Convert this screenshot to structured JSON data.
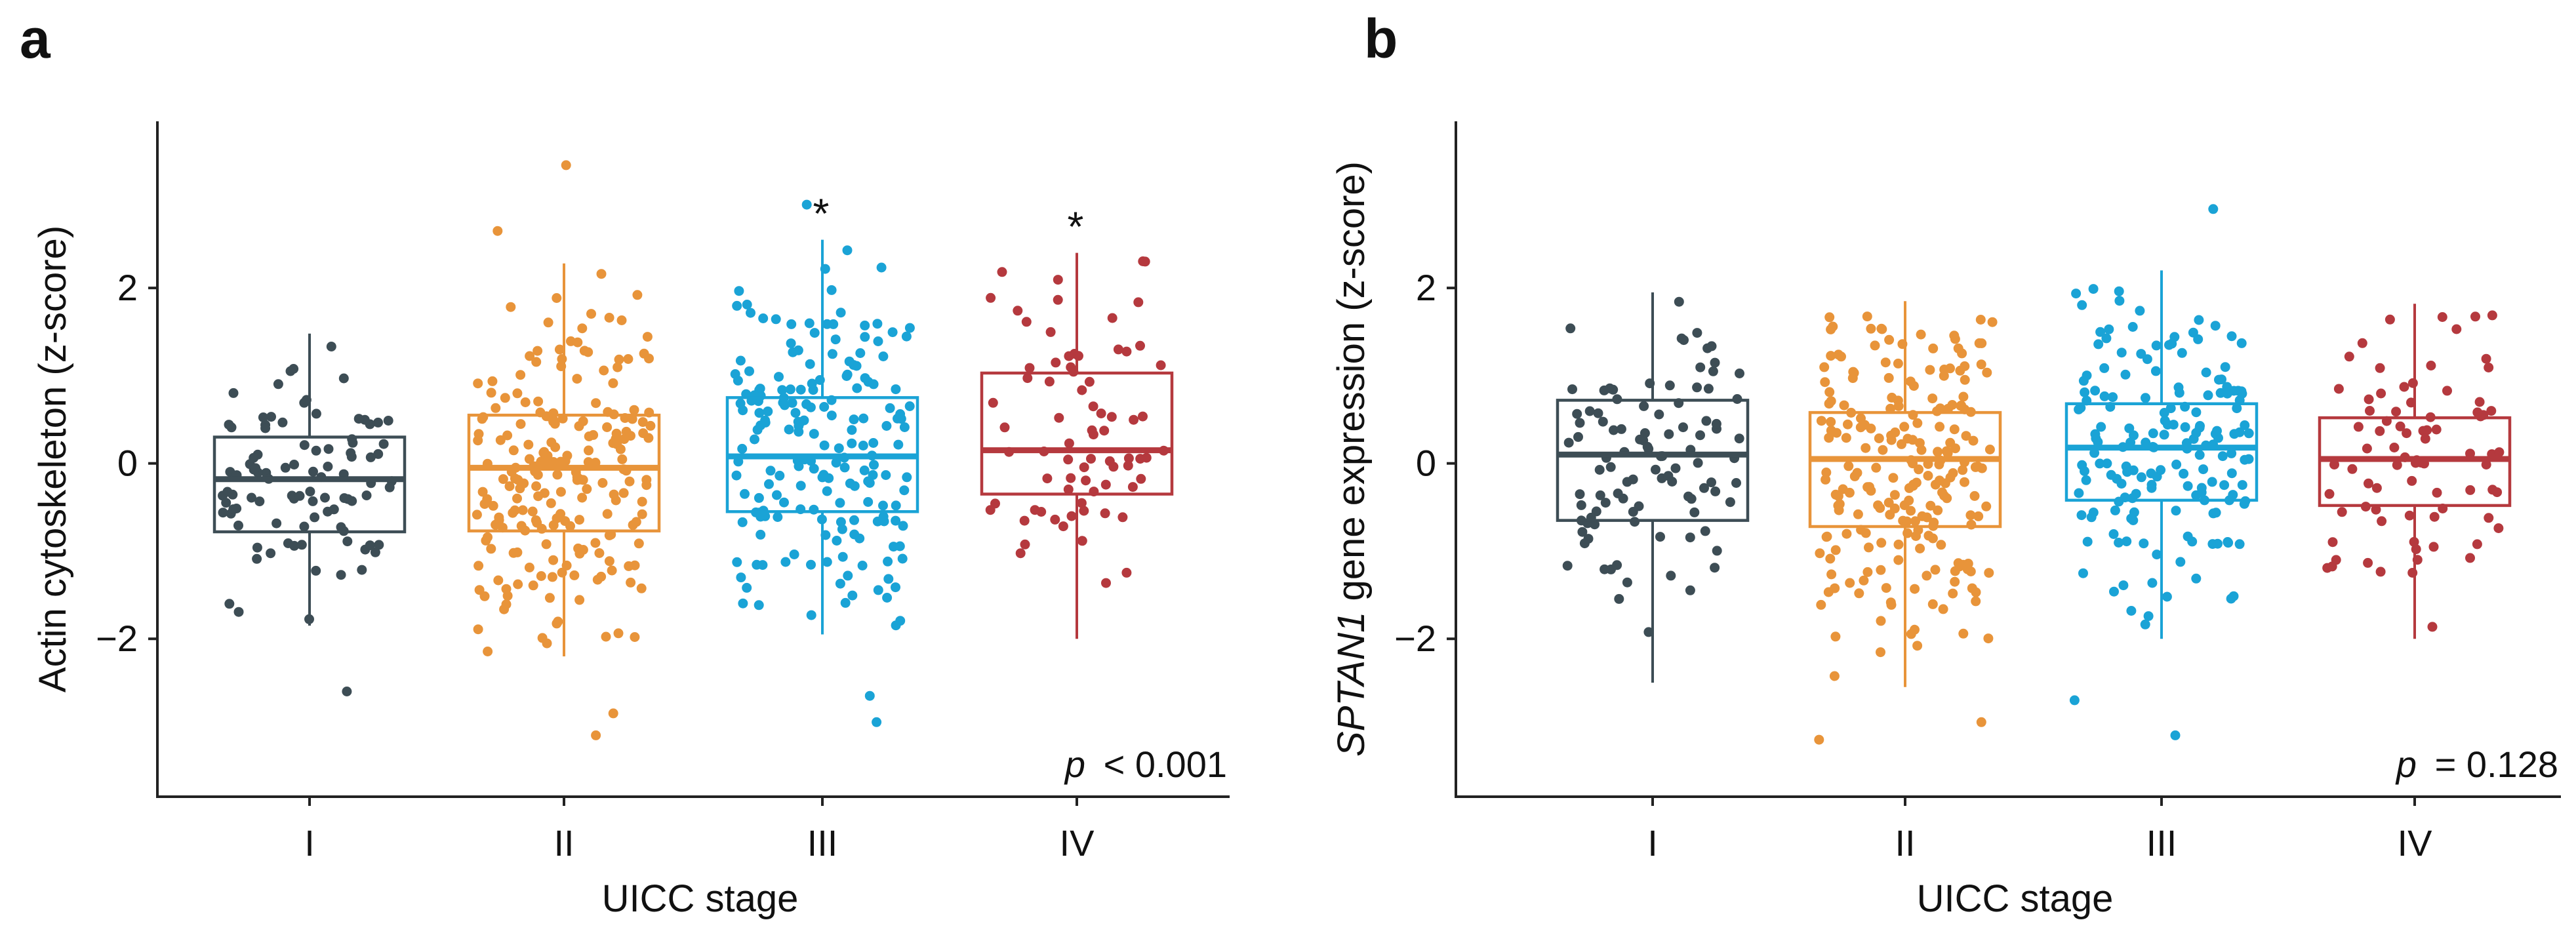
{
  "chart_data": [
    {
      "panel_label": "a",
      "type": "box",
      "xlabel": "UICC stage",
      "ylabel": "Actin cytoskeleton (z-score)",
      "ylabel_italic_part": "",
      "ylabel_rest": "Actin cytoskeleton (z-score)",
      "ylim": [
        -3.8,
        3.9
      ],
      "yticks": [
        -2,
        0,
        2
      ],
      "ytick_labels": [
        "−2",
        "0",
        "2"
      ],
      "categories": [
        "I",
        "II",
        "III",
        "IV"
      ],
      "colors": [
        "#3d4d55",
        "#e8943a",
        "#1aa3d6",
        "#b5393e"
      ],
      "stats": [
        {
          "min": -1.85,
          "q1": -0.78,
          "median": -0.18,
          "q3": 0.3,
          "max": 1.48,
          "n": 95,
          "sd": 0.8,
          "outliers": [
            -2.6
          ]
        },
        {
          "min": -2.2,
          "q1": -0.77,
          "median": -0.05,
          "q3": 0.55,
          "max": 2.28,
          "n": 210,
          "sd": 1.0,
          "outliers": [
            3.4,
            2.65,
            -2.85,
            -3.1
          ]
        },
        {
          "min": -1.95,
          "q1": -0.55,
          "median": 0.08,
          "q3": 0.75,
          "max": 2.55,
          "n": 190,
          "sd": 1.0,
          "outliers": [
            -2.65,
            -2.95,
            2.95
          ]
        },
        {
          "min": -2.0,
          "q1": -0.35,
          "median": 0.15,
          "q3": 1.03,
          "max": 2.4,
          "n": 75,
          "sd": 1.0,
          "outliers": []
        }
      ],
      "significance": [
        "",
        "",
        "*",
        "*"
      ],
      "p_label": "p",
      "p_value": "< 0.001"
    },
    {
      "panel_label": "b",
      "type": "box",
      "xlabel": "UICC stage",
      "ylabel": "SPTAN1 gene expression (z-score)",
      "ylabel_italic_part": "SPTAN1",
      "ylabel_rest": " gene expression (z-score)",
      "ylim": [
        -3.8,
        3.9
      ],
      "yticks": [
        -2,
        0,
        2
      ],
      "ytick_labels": [
        "−2",
        "0",
        "2"
      ],
      "categories": [
        "I",
        "II",
        "III",
        "IV"
      ],
      "colors": [
        "#3d4d55",
        "#e8943a",
        "#1aa3d6",
        "#b5393e"
      ],
      "stats": [
        {
          "min": -2.5,
          "q1": -0.65,
          "median": 0.1,
          "q3": 0.72,
          "max": 1.95,
          "n": 100,
          "sd": 0.9,
          "outliers": []
        },
        {
          "min": -2.55,
          "q1": -0.72,
          "median": 0.05,
          "q3": 0.58,
          "max": 1.85,
          "n": 220,
          "sd": 1.0,
          "outliers": [
            -2.95,
            -3.15
          ]
        },
        {
          "min": -2.0,
          "q1": -0.42,
          "median": 0.18,
          "q3": 0.68,
          "max": 2.2,
          "n": 170,
          "sd": 0.9,
          "outliers": [
            2.9,
            -3.1,
            -2.7
          ]
        },
        {
          "min": -2.0,
          "q1": -0.48,
          "median": 0.05,
          "q3": 0.52,
          "max": 1.82,
          "n": 80,
          "sd": 0.8,
          "outliers": []
        }
      ],
      "significance": [
        "",
        "",
        "",
        ""
      ],
      "p_label": "p",
      "p_value": "= 0.128"
    }
  ]
}
